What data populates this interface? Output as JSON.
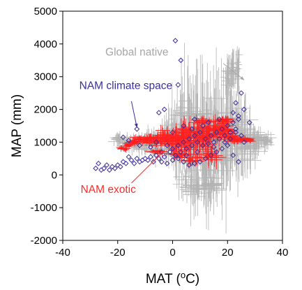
{
  "chart_data": {
    "type": "scatter",
    "title": "",
    "xlabel": "MAT (",
    "xlabel_sup": "o",
    "xlabel_suffix": "C)",
    "ylabel": "MAP (mm)",
    "xlim": [
      -40,
      40
    ],
    "ylim": [
      -2000,
      5000
    ],
    "xticks": [
      -40,
      -20,
      0,
      20,
      40
    ],
    "yticks": [
      -2000,
      -1000,
      0,
      1000,
      2000,
      3000,
      4000,
      5000
    ],
    "grid": false,
    "legend": "none",
    "annotations": [
      {
        "text": "Global native",
        "color": "#a6a6a6",
        "x": -24.5,
        "y": 3650,
        "arrow_from": [
          18.5,
          3400
        ],
        "arrow_to": [
          26,
          2900
        ]
      },
      {
        "text": "NAM climate space",
        "color": "#3b2f9a",
        "x": -34,
        "y": 2620,
        "arrow_from": [
          -15,
          2250
        ],
        "arrow_to": [
          -13,
          1450
        ]
      },
      {
        "text": "NAM exotic",
        "color": "#ff2a2a",
        "x": -33.5,
        "y": -550,
        "arrow_from": [
          -15,
          -250
        ],
        "arrow_to": [
          -3,
          750
        ]
      }
    ],
    "series": [
      {
        "name": "Global native",
        "color": "#b3b3b3",
        "kind": "errorbar-cloud",
        "points": [
          [
            -20,
            1100,
            4,
            300
          ],
          [
            -17,
            950,
            4,
            350
          ],
          [
            -14,
            1000,
            5,
            400
          ],
          [
            -11,
            900,
            5,
            450
          ],
          [
            -8,
            1050,
            6,
            500
          ],
          [
            -5,
            950,
            6,
            700
          ],
          [
            -2,
            1100,
            6,
            900
          ],
          [
            0,
            1000,
            6,
            1300
          ],
          [
            2,
            1250,
            6,
            1800
          ],
          [
            4,
            1300,
            7,
            2400
          ],
          [
            6,
            1200,
            7,
            2800
          ],
          [
            8,
            1100,
            7,
            3000
          ],
          [
            10,
            1050,
            7,
            3000
          ],
          [
            12,
            1000,
            7,
            2800
          ],
          [
            14,
            1100,
            8,
            2700
          ],
          [
            16,
            1200,
            8,
            2600
          ],
          [
            18,
            1150,
            8,
            2500
          ],
          [
            20,
            1300,
            8,
            2300
          ],
          [
            22,
            1150,
            8,
            2000
          ],
          [
            24,
            1100,
            8,
            1800
          ],
          [
            26,
            1000,
            8,
            1400
          ],
          [
            28,
            1050,
            8,
            1000
          ],
          [
            30,
            1000,
            8,
            600
          ],
          [
            32,
            1100,
            6,
            400
          ],
          [
            34,
            1050,
            4,
            250
          ],
          [
            20,
            3000,
            4,
            900
          ],
          [
            22,
            3200,
            3,
            800
          ],
          [
            24,
            3300,
            2,
            800
          ],
          [
            5,
            -300,
            6,
            600
          ],
          [
            10,
            -450,
            6,
            550
          ],
          [
            15,
            -300,
            6,
            600
          ],
          [
            12,
            500,
            8,
            1500
          ],
          [
            18,
            600,
            6,
            1500
          ]
        ]
      },
      {
        "name": "NAM exotic",
        "color": "#ff2020",
        "kind": "errorbar-cloud",
        "points": [
          [
            -18,
            800,
            3,
            120
          ],
          [
            -16,
            900,
            3,
            150
          ],
          [
            -14,
            1000,
            4,
            150
          ],
          [
            -12,
            1100,
            5,
            150
          ],
          [
            -10,
            1050,
            5,
            160
          ],
          [
            -8,
            1150,
            6,
            180
          ],
          [
            -6,
            1000,
            6,
            250
          ],
          [
            -4,
            1100,
            6,
            300
          ],
          [
            -2,
            1200,
            6,
            350
          ],
          [
            0,
            1000,
            7,
            450
          ],
          [
            2,
            1100,
            7,
            550
          ],
          [
            4,
            1200,
            7,
            650
          ],
          [
            6,
            1050,
            7,
            700
          ],
          [
            8,
            1150,
            7,
            700
          ],
          [
            10,
            1300,
            7,
            650
          ],
          [
            12,
            1100,
            7,
            650
          ],
          [
            14,
            1250,
            7,
            600
          ],
          [
            16,
            1350,
            7,
            500
          ],
          [
            18,
            1400,
            6,
            450
          ],
          [
            20,
            1200,
            6,
            300
          ],
          [
            22,
            1100,
            6,
            200
          ],
          [
            24,
            1050,
            5,
            150
          ],
          [
            26,
            1100,
            4,
            120
          ],
          [
            28,
            1050,
            3,
            100
          ],
          [
            8,
            500,
            6,
            400
          ],
          [
            14,
            600,
            6,
            400
          ],
          [
            2,
            600,
            6,
            300
          ],
          [
            -6,
            700,
            5,
            150
          ],
          [
            11,
            1650,
            6,
            200
          ],
          [
            19,
            1650,
            5,
            200
          ]
        ]
      },
      {
        "name": "NAM climate space",
        "color": "#3b2f9a",
        "kind": "markers",
        "points": [
          [
            -28,
            200
          ],
          [
            -27,
            350
          ],
          [
            -26,
            150
          ],
          [
            -25,
            200
          ],
          [
            -24,
            300
          ],
          [
            -23,
            150
          ],
          [
            -22,
            250
          ],
          [
            -21,
            200
          ],
          [
            -20,
            300
          ],
          [
            -19,
            250
          ],
          [
            -18,
            400
          ],
          [
            -17,
            350
          ],
          [
            -16,
            550
          ],
          [
            -15,
            450
          ],
          [
            -14,
            350
          ],
          [
            -13,
            500
          ],
          [
            -12,
            400
          ],
          [
            -11,
            450
          ],
          [
            -10,
            500
          ],
          [
            -9,
            450
          ],
          [
            -8,
            550
          ],
          [
            -7,
            400
          ],
          [
            -6,
            600
          ],
          [
            -5,
            500
          ],
          [
            -4,
            700
          ],
          [
            -3,
            550
          ],
          [
            -2,
            900
          ],
          [
            -1,
            700
          ],
          [
            0,
            800
          ],
          [
            1,
            600
          ],
          [
            2,
            900
          ],
          [
            3,
            700
          ],
          [
            4,
            1000
          ],
          [
            5,
            800
          ],
          [
            6,
            1100
          ],
          [
            7,
            900
          ],
          [
            8,
            1200
          ],
          [
            9,
            1000
          ],
          [
            10,
            1300
          ],
          [
            11,
            900
          ],
          [
            12,
            1100
          ],
          [
            13,
            950
          ],
          [
            14,
            1200
          ],
          [
            15,
            1000
          ],
          [
            16,
            1300
          ],
          [
            17,
            1100
          ],
          [
            18,
            1400
          ],
          [
            19,
            1200
          ],
          [
            20,
            1500
          ],
          [
            21,
            1300
          ],
          [
            22,
            1600
          ],
          [
            23,
            1400
          ],
          [
            24,
            1800
          ],
          [
            25,
            1200
          ],
          [
            26,
            1000
          ],
          [
            22,
            600
          ],
          [
            24,
            400
          ],
          [
            20,
            900
          ],
          [
            18,
            800
          ],
          [
            16,
            700
          ],
          [
            14,
            600
          ],
          [
            12,
            500
          ],
          [
            10,
            400
          ],
          [
            8,
            350
          ],
          [
            6,
            300
          ],
          [
            4,
            400
          ],
          [
            2,
            500
          ],
          [
            0,
            450
          ],
          [
            -2,
            350
          ],
          [
            -4,
            400
          ],
          [
            5,
            600
          ],
          [
            9,
            700
          ],
          [
            15,
            850
          ],
          [
            19,
            1000
          ],
          [
            21,
            1100
          ],
          [
            23,
            1300
          ],
          [
            7,
            1400
          ],
          [
            11,
            1500
          ],
          [
            13,
            1600
          ],
          [
            17,
            1700
          ],
          [
            1,
            4100
          ],
          [
            3,
            3500
          ],
          [
            2,
            2750
          ],
          [
            -5,
            1900
          ],
          [
            -13,
            1400
          ],
          [
            -18,
            1150
          ],
          [
            -16,
            1050
          ],
          [
            -12,
            900
          ],
          [
            -8,
            850
          ],
          [
            -6,
            1000
          ],
          [
            0,
            1300
          ],
          [
            4,
            1500
          ],
          [
            8,
            1700
          ],
          [
            -3,
            2000
          ],
          [
            25,
            2500
          ],
          [
            23,
            2200
          ],
          [
            26,
            2000
          ],
          [
            24,
            1700
          ],
          [
            28,
            1600
          ],
          [
            22,
            1900
          ]
        ]
      }
    ]
  }
}
